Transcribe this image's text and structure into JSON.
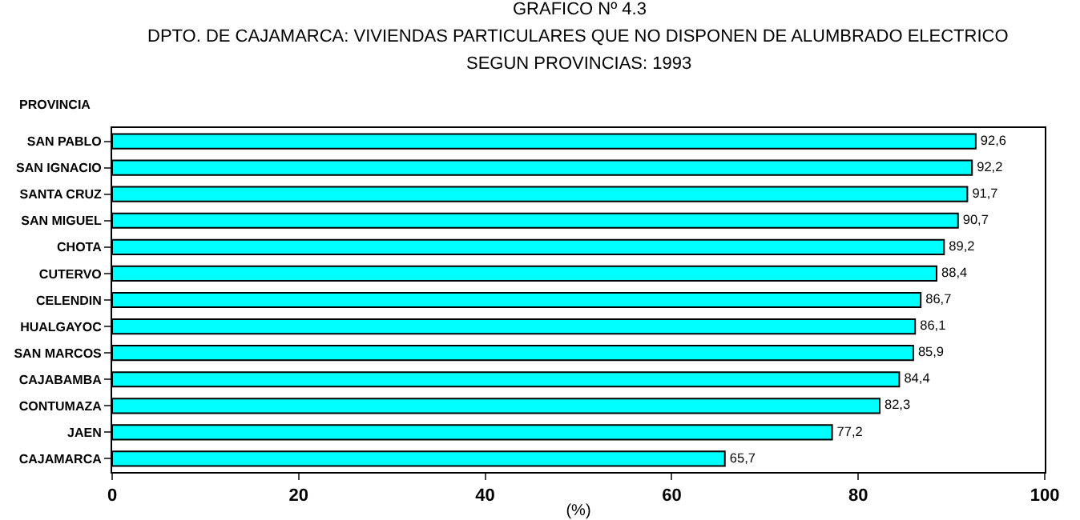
{
  "chart_data": {
    "type": "bar",
    "orientation": "horizontal",
    "title": "GRAFICO Nº 4.3",
    "subtitle": "DPTO. DE CAJAMARCA: VIVIENDAS PARTICULARES QUE NO DISPONEN DE ALUMBRADO ELECTRICO\nSEGUN PROVINCIAS: 1993",
    "ylabel": "PROVINCIA",
    "xlabel": "(%)",
    "categories": [
      "SAN PABLO",
      "SAN IGNACIO",
      "SANTA CRUZ",
      "SAN MIGUEL",
      "CHOTA",
      "CUTERVO",
      "CELENDIN",
      "HUALGAYOC",
      "SAN MARCOS",
      "CAJABAMBA",
      "CONTUMAZA",
      "JAEN",
      "CAJAMARCA"
    ],
    "values": [
      92.6,
      92.2,
      91.7,
      90.7,
      89.2,
      88.4,
      86.7,
      86.1,
      85.9,
      84.4,
      82.3,
      77.2,
      65.7
    ],
    "value_labels": [
      "92,6",
      "92,2",
      "91,7",
      "90,7",
      "89,2",
      "88,4",
      "86,7",
      "86,1",
      "85,9",
      "84,4",
      "82,3",
      "77,2",
      "65,7"
    ],
    "color": "#00ffff",
    "xlim": [
      0,
      100
    ],
    "xticks": [
      0,
      20,
      40,
      60,
      80,
      100
    ],
    "grid": false,
    "legend": false
  }
}
